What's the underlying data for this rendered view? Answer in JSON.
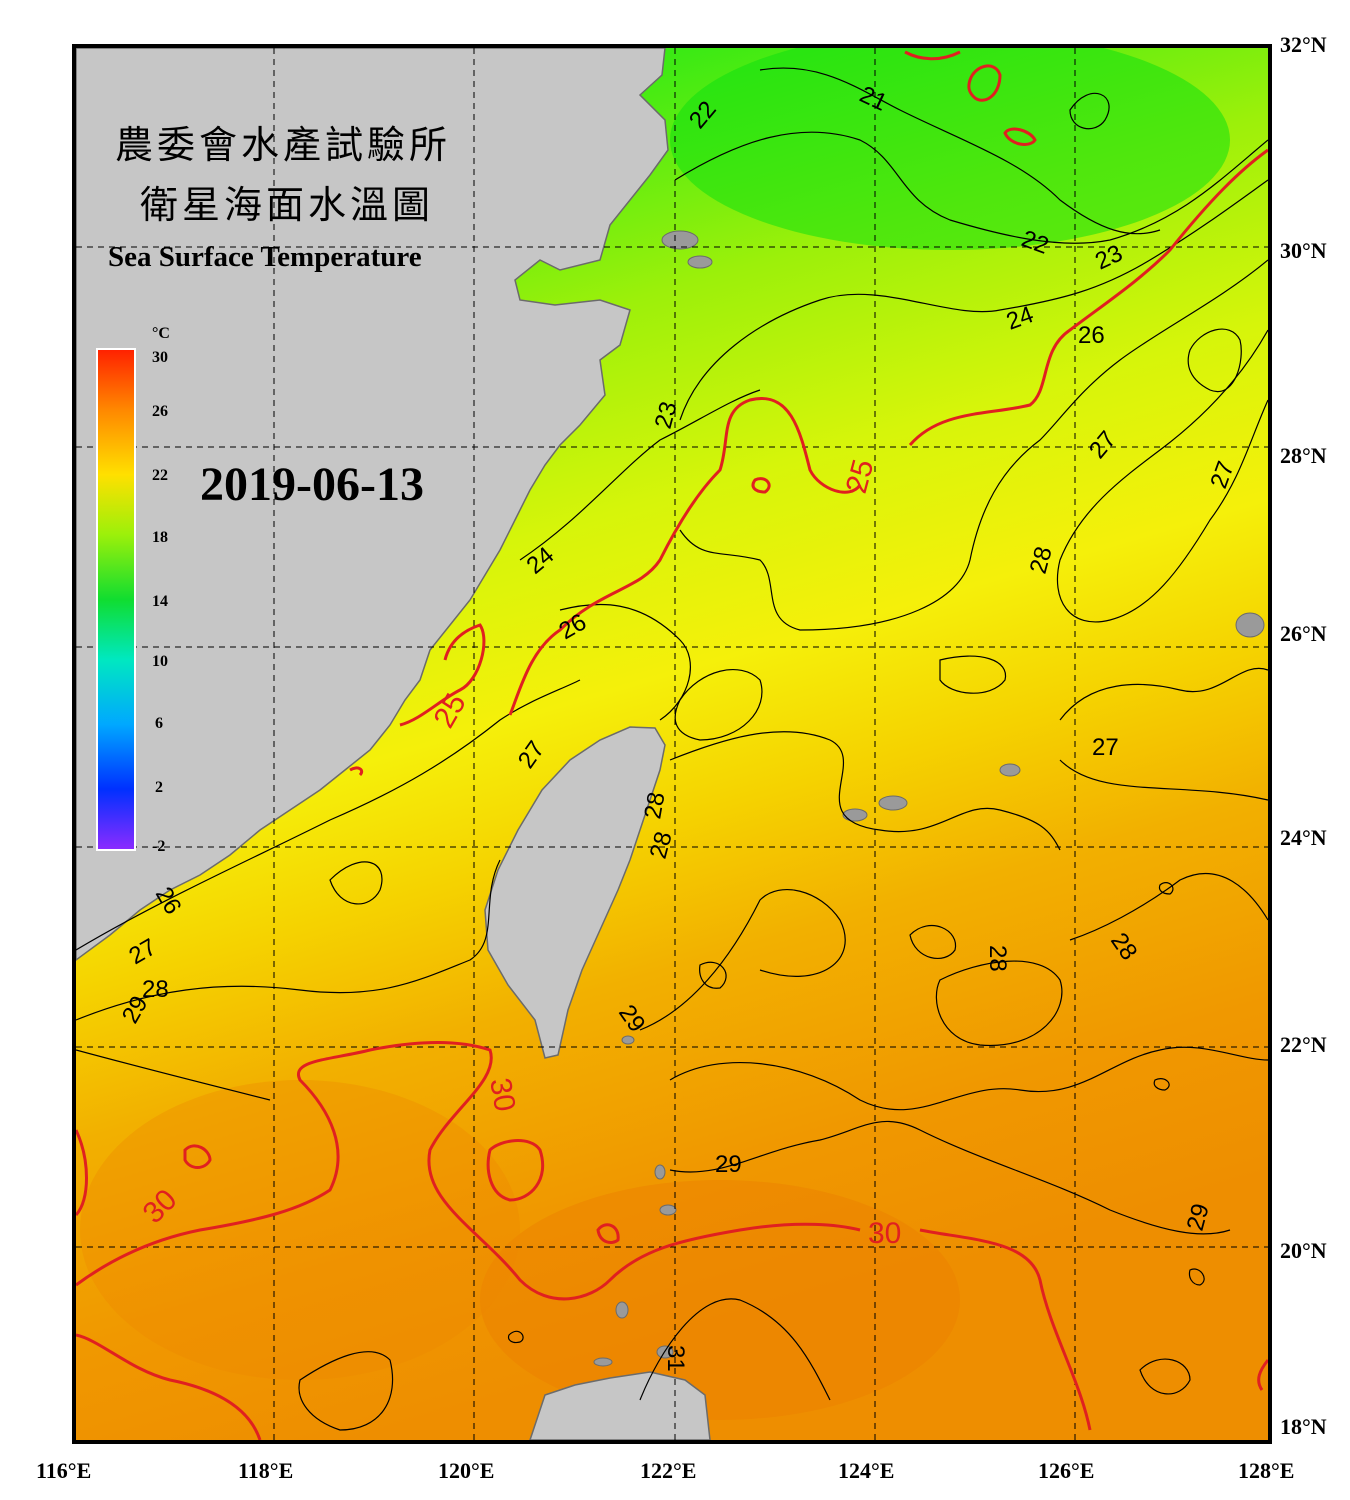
{
  "map": {
    "title_zh_line1": "農委會水產試驗所",
    "title_zh_line2": "衛星海面水溫圖",
    "title_en": "Sea Surface Temperature",
    "date": "2019-06-13",
    "lat_labels": [
      "32°N",
      "30°N",
      "28°N",
      "26°N",
      "24°N",
      "22°N",
      "20°N",
      "18°N"
    ],
    "lon_labels": [
      "116°E",
      "118°E",
      "120°E",
      "122°E",
      "124°E",
      "126°E",
      "128°E"
    ]
  },
  "colorbar": {
    "unit": "°C",
    "ticks": [
      "30",
      "26",
      "22",
      "18",
      "14",
      "10",
      "6",
      "2",
      "-2"
    ]
  },
  "contour_labels": {
    "black": [
      "21",
      "22",
      "22",
      "23",
      "23",
      "24",
      "24",
      "26",
      "26",
      "27",
      "27",
      "27",
      "27",
      "28",
      "28",
      "28",
      "28",
      "28",
      "29",
      "29",
      "29",
      "27",
      "28",
      "29",
      "26",
      "31"
    ],
    "red": [
      "25",
      "25",
      "30",
      "30",
      "30"
    ]
  },
  "colors": {
    "land": "#c6c6c6",
    "land_outline": "#6b6b6b",
    "sst_cool": "#1ae61a",
    "sst_mid": "#e8f20a",
    "sst_warm": "#f0a000",
    "red_contour": "#e02020"
  }
}
